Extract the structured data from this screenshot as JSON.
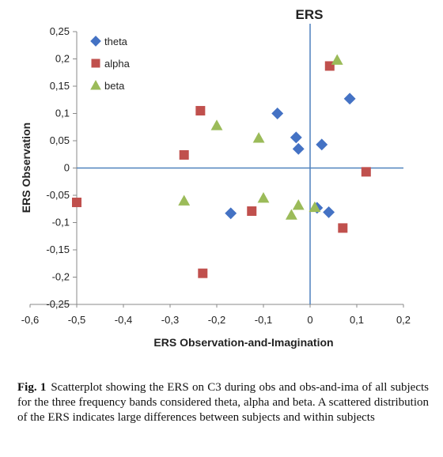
{
  "chart_data": {
    "type": "scatter",
    "title": "ERS",
    "xlabel": "ERS Observation-and-Imagination",
    "ylabel": "ERS Observation",
    "xlim": [
      -0.6,
      0.2
    ],
    "ylim": [
      -0.25,
      0.25
    ],
    "x_ticks": [
      "-0,6",
      "-0,5",
      "-0,4",
      "-0,3",
      "-0,2",
      "-0,1",
      "0",
      "0,1",
      "0,2"
    ],
    "y_ticks": [
      "0,25",
      "0,2",
      "0,15",
      "0,1",
      "0,05",
      "0",
      "-0,05",
      "-0,1",
      "-0,15",
      "-0,2",
      "-0,25"
    ],
    "legend_position": "top-left",
    "grid": false,
    "series": [
      {
        "name": "theta",
        "marker": "diamond",
        "color": "#4472c4",
        "points": [
          {
            "x": -0.07,
            "y": 0.1
          },
          {
            "x": -0.03,
            "y": 0.056
          },
          {
            "x": -0.025,
            "y": 0.035
          },
          {
            "x": 0.025,
            "y": 0.043
          },
          {
            "x": 0.085,
            "y": 0.127
          },
          {
            "x": -0.17,
            "y": -0.083
          },
          {
            "x": 0.015,
            "y": -0.073
          },
          {
            "x": 0.04,
            "y": -0.081
          }
        ]
      },
      {
        "name": "alpha",
        "marker": "square",
        "color": "#c0504d",
        "points": [
          {
            "x": 0.042,
            "y": 0.187
          },
          {
            "x": -0.235,
            "y": 0.105
          },
          {
            "x": -0.27,
            "y": 0.024
          },
          {
            "x": 0.12,
            "y": -0.007
          },
          {
            "x": -0.5,
            "y": -0.063
          },
          {
            "x": -0.125,
            "y": -0.079
          },
          {
            "x": 0.07,
            "y": -0.11
          },
          {
            "x": -0.23,
            "y": -0.193
          }
        ]
      },
      {
        "name": "beta",
        "marker": "triangle",
        "color": "#9bbb59",
        "points": [
          {
            "x": 0.058,
            "y": 0.198
          },
          {
            "x": -0.2,
            "y": 0.078
          },
          {
            "x": -0.11,
            "y": 0.055
          },
          {
            "x": -0.27,
            "y": -0.06
          },
          {
            "x": -0.1,
            "y": -0.055
          },
          {
            "x": -0.025,
            "y": -0.068
          },
          {
            "x": -0.04,
            "y": -0.086
          },
          {
            "x": 0.01,
            "y": -0.072
          }
        ]
      }
    ]
  },
  "caption": {
    "label": "Fig. 1",
    "text": "Scatterplot showing the ERS on C3 during obs and obs-and-ima of all subjects for the three frequency bands considered theta, alpha and beta. A scattered distribution of the ERS indicates large differences between subjects and within subjects"
  }
}
